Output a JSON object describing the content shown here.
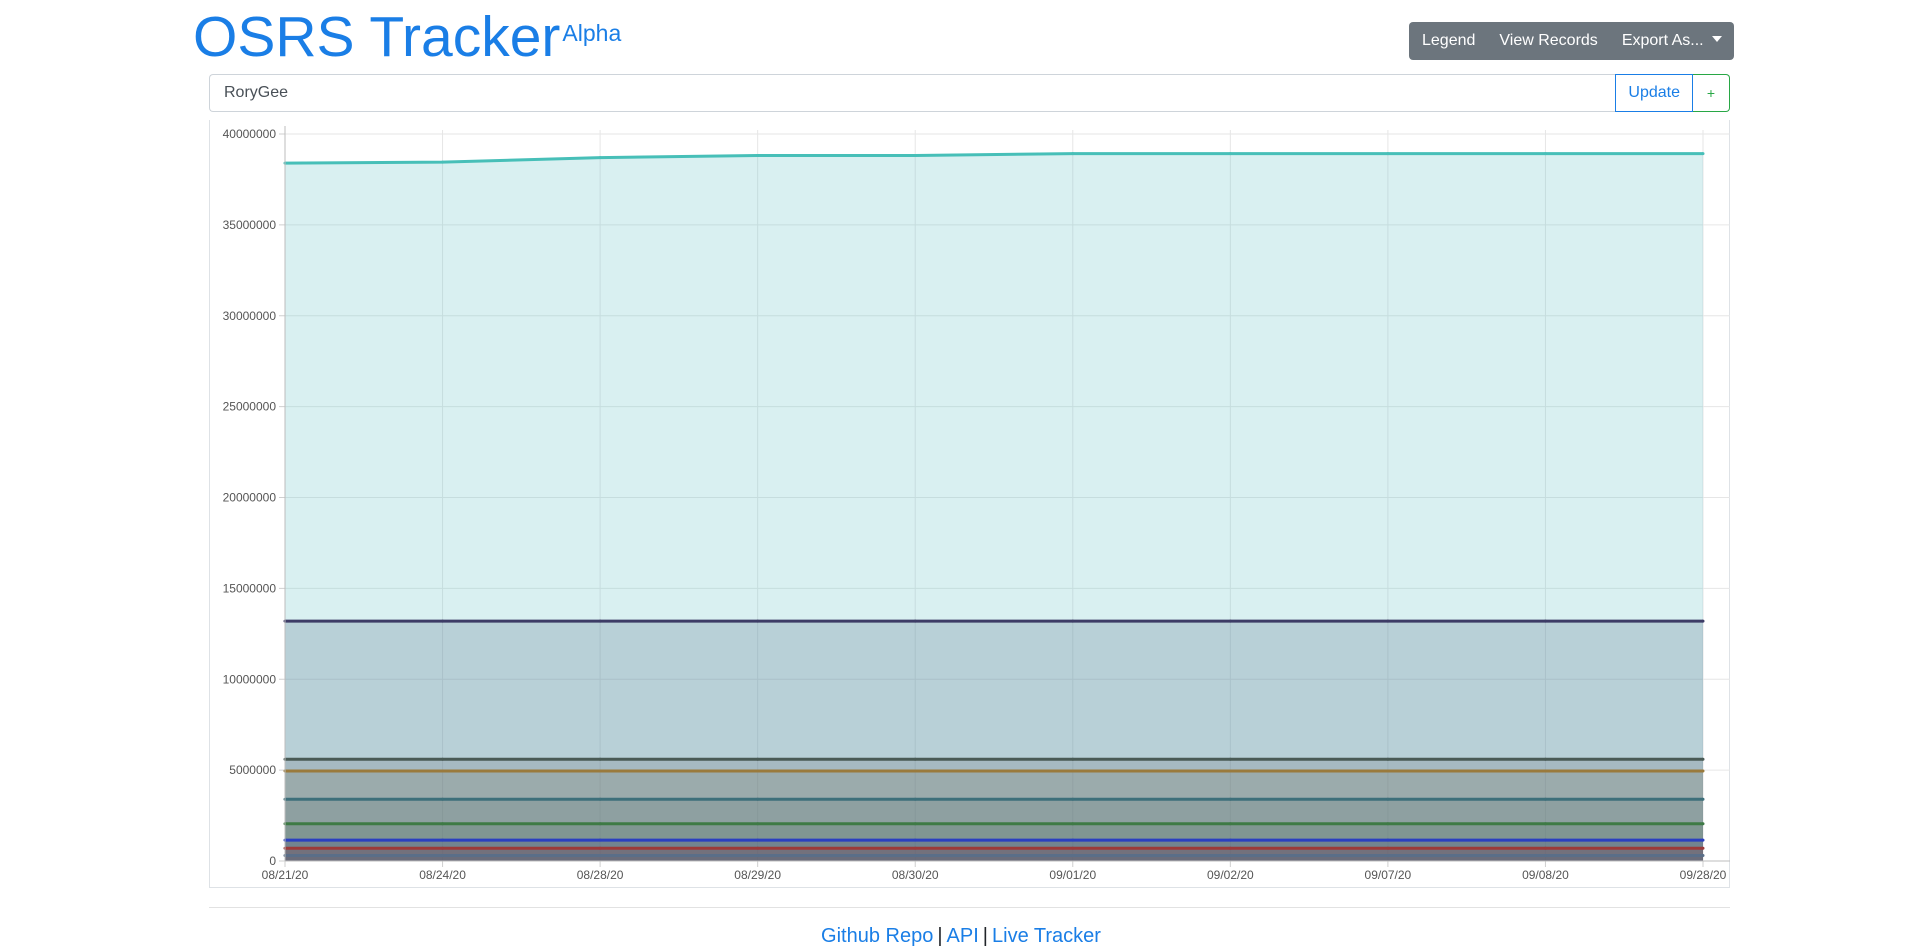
{
  "header": {
    "title": "OSRS Tracker",
    "badge": "Alpha"
  },
  "toolbar": {
    "legend_label": "Legend",
    "view_records_label": "View Records",
    "export_label": "Export As..."
  },
  "search": {
    "value": "RoryGee",
    "update_label": "Update",
    "add_label": "+"
  },
  "footer": {
    "links": [
      "Github Repo",
      "API",
      "Live Tracker"
    ],
    "separator": "|"
  },
  "chart_data": {
    "type": "area",
    "title": "",
    "xlabel": "",
    "ylabel": "",
    "categories": [
      "08/21/20",
      "08/24/20",
      "08/28/20",
      "08/29/20",
      "08/30/20",
      "09/01/20",
      "09/02/20",
      "09/07/20",
      "09/08/20",
      "09/28/20"
    ],
    "ylim": [
      0,
      40000000
    ],
    "yticks": [
      "0",
      "5000000",
      "10000000",
      "15000000",
      "20000000",
      "25000000",
      "30000000",
      "35000000",
      "40000000"
    ],
    "grid": true,
    "legend": "hidden",
    "series": [
      {
        "values": [
          38400000,
          38450000,
          38700000,
          38820000,
          38820000,
          38920000,
          38920000,
          38920000,
          38920000,
          38920000
        ],
        "color": "#47bfb8",
        "fill": "rgba(105,195,200,0.25)"
      },
      {
        "values": [
          13200000,
          13200000,
          13200000,
          13200000,
          13200000,
          13200000,
          13200000,
          13200000,
          13200000,
          13200000
        ],
        "color": "#3d3c66",
        "fill": "rgba(88,110,140,0.25)"
      },
      {
        "values": [
          5600000,
          5600000,
          5600000,
          5600000,
          5600000,
          5600000,
          5600000,
          5600000,
          5600000,
          5600000
        ],
        "color": "#495a55",
        "fill": "rgba(95,100,110,0.20)"
      },
      {
        "values": [
          4950000,
          4950000,
          4950000,
          4950000,
          4950000,
          4950000,
          4950000,
          4950000,
          4950000,
          4950000
        ],
        "color": "#9a7a3c",
        "fill": "rgba(120,120,95,0.22)"
      },
      {
        "values": [
          3400000,
          3400000,
          3400000,
          3400000,
          3400000,
          3400000,
          3400000,
          3400000,
          3400000,
          3400000
        ],
        "color": "#3d6f7a",
        "fill": "rgba(90,120,120,0.20)"
      },
      {
        "values": [
          2050000,
          2050000,
          2050000,
          2050000,
          2050000,
          2050000,
          2050000,
          2050000,
          2050000,
          2050000
        ],
        "color": "#3e7a45",
        "fill": "rgba(80,115,95,0.22)"
      },
      {
        "values": [
          1150000,
          1150000,
          1150000,
          1150000,
          1150000,
          1150000,
          1150000,
          1150000,
          1150000,
          1150000
        ],
        "color": "#2a3fc0",
        "fill": "rgba(70,80,140,0.25)"
      },
      {
        "values": [
          700000,
          700000,
          700000,
          700000,
          700000,
          700000,
          700000,
          700000,
          700000,
          700000
        ],
        "color": "#9c3a3a",
        "fill": "rgba(120,70,80,0.30)"
      },
      {
        "values": [
          300000,
          300000,
          300000,
          300000,
          300000,
          300000,
          300000,
          300000,
          300000,
          300000
        ],
        "color": "#5a6e88",
        "fill": "rgba(90,100,120,0.35)"
      }
    ]
  }
}
